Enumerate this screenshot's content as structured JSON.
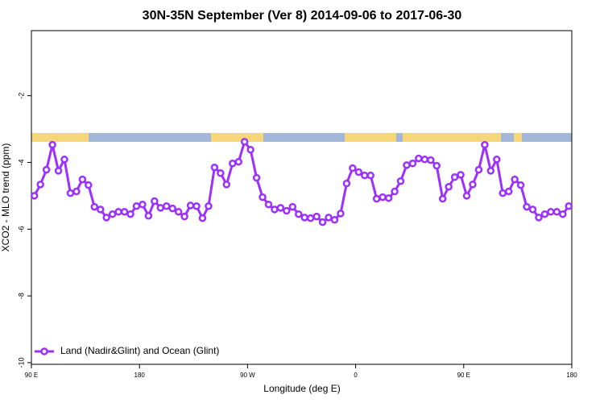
{
  "chart_data": {
    "type": "line",
    "title": "30N-35N September (Ver 8)   2014-09-06 to 2017-06-30",
    "xlabel": "Longitude (deg E)",
    "ylabel": "XCO2 - MLO trend (ppm)",
    "xlim": [
      90,
      540
    ],
    "xticks": [
      {
        "value": 90,
        "label": "90 E"
      },
      180,
      {
        "value": 270,
        "label": "90 W"
      },
      {
        "value": 360,
        "label": "0"
      },
      {
        "value": 450,
        "label": "90 E"
      },
      {
        "value": 540,
        "label": "180"
      }
    ],
    "ylim": [
      -10.05,
      -0.05
    ],
    "yticks": [
      -10,
      -8,
      -6,
      -4,
      -2
    ],
    "legend": "bottom-left",
    "x": [
      92.5,
      97.5,
      102.5,
      107.5,
      112.5,
      117.5,
      122.5,
      127.5,
      132.5,
      137.5,
      142.5,
      147.5,
      152.5,
      157.5,
      162.5,
      167.5,
      172.5,
      177.5,
      182.5,
      187.5,
      192.5,
      197.5,
      202.5,
      207.5,
      212.5,
      217.5,
      222.5,
      227.5,
      232.5,
      237.5,
      242.5,
      247.5,
      252.5,
      257.5,
      262.5,
      267.5,
      272.5,
      277.5,
      282.5,
      287.5,
      292.5,
      297.5,
      302.5,
      307.5,
      312.5,
      317.5,
      322.5,
      327.5,
      332.5,
      337.5,
      342.5,
      347.5,
      352.5,
      357.5,
      362.5,
      367.5,
      372.5,
      377.5,
      382.5,
      387.5,
      392.5,
      397.5,
      402.5,
      407.5,
      412.5,
      417.5,
      422.5,
      427.5,
      432.5,
      437.5,
      442.5,
      447.5,
      452.5,
      457.5,
      462.5,
      467.5,
      472.5,
      477.5,
      482.5,
      487.5,
      492.5,
      497.5,
      502.5,
      507.5,
      512.5,
      517.5,
      522.5,
      527.5,
      532.5,
      537.5
    ],
    "series": [
      {
        "name": "Land (Nadir&Glint) and Ocean (Glint)",
        "color": "#9b30ff",
        "values": [
          -5.0,
          -4.66,
          -4.22,
          -3.47,
          -4.25,
          -3.91,
          -4.92,
          -4.87,
          -4.51,
          -4.68,
          -5.33,
          -5.41,
          -5.65,
          -5.55,
          -5.48,
          -5.48,
          -5.55,
          -5.31,
          -5.26,
          -5.6,
          -5.16,
          -5.36,
          -5.31,
          -5.38,
          -5.48,
          -5.62,
          -5.29,
          -5.31,
          -5.67,
          -5.31,
          -4.15,
          -4.32,
          -4.66,
          -4.03,
          -3.98,
          -3.38,
          -3.62,
          -4.46,
          -5.04,
          -5.26,
          -5.41,
          -5.36,
          -5.45,
          -5.33,
          -5.55,
          -5.65,
          -5.67,
          -5.62,
          -5.79,
          -5.65,
          -5.72,
          -5.53,
          -4.63,
          -4.17,
          -4.29,
          -4.39,
          -4.39,
          -5.09,
          -5.04,
          -5.07,
          -4.87,
          -4.56,
          -4.08,
          -4.03,
          -3.88,
          -3.91,
          -3.93,
          -4.1,
          -5.09,
          -4.73,
          -4.44,
          -4.37,
          -5.0,
          -4.66,
          -4.22,
          -3.47,
          -4.25,
          -3.91,
          -4.92,
          -4.87,
          -4.51,
          -4.68,
          -5.33,
          -5.41,
          -5.65,
          -5.55,
          -5.48,
          -5.48,
          -5.55,
          -5.31
        ]
      }
    ]
  }
}
